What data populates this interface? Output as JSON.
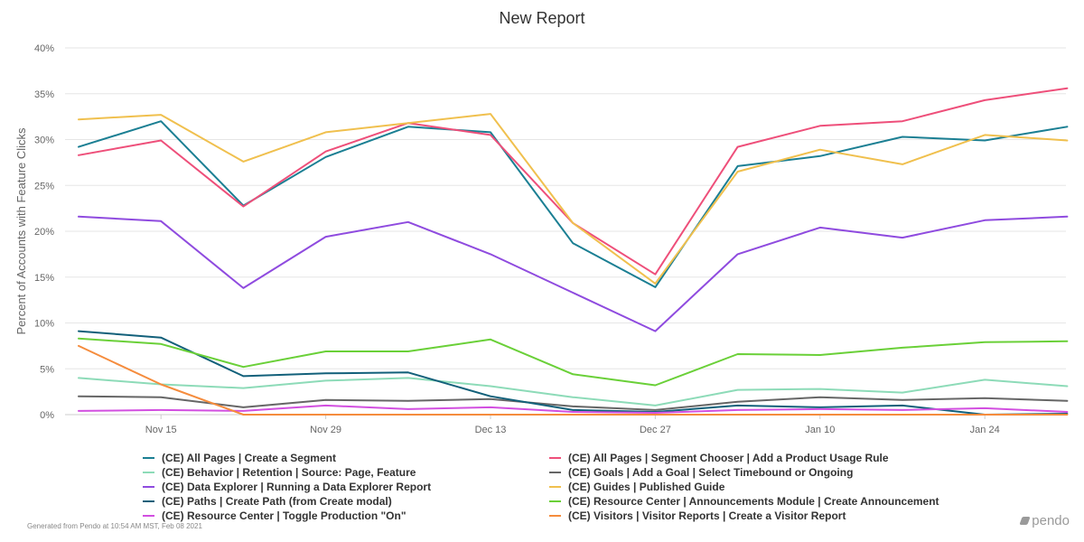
{
  "title": "New Report",
  "footer": "Generated from Pendo at 10:54 AM MST, Feb 08 2021",
  "brand": "pendo",
  "chart_data": {
    "type": "line",
    "title": "New Report",
    "xlabel": "",
    "ylabel": "Percent of Accounts with Feature Clicks",
    "ylim": [
      0,
      40
    ],
    "yticks": [
      0,
      5,
      10,
      15,
      20,
      25,
      30,
      35,
      40
    ],
    "ytick_labels": [
      "0%",
      "5%",
      "10%",
      "15%",
      "20%",
      "25%",
      "30%",
      "35%",
      "40%"
    ],
    "x": [
      "Nov 8",
      "Nov 15",
      "Nov 22",
      "Nov 29",
      "Dec 6",
      "Dec 13",
      "Dec 20",
      "Dec 27",
      "Jan 3",
      "Jan 10",
      "Jan 17",
      "Jan 24",
      "Jan 31"
    ],
    "xtick_labels": [
      "Nov 15",
      "Nov 29",
      "Dec 13",
      "Dec 27",
      "Jan 10",
      "Jan 24"
    ],
    "grid": true,
    "legend_position": "bottom",
    "series": [
      {
        "name": "(CE) All Pages | Create a Segment",
        "color": "#1b7f93",
        "values": [
          29.2,
          32.0,
          22.8,
          28.1,
          31.4,
          30.8,
          18.7,
          13.9,
          27.1,
          28.2,
          30.3,
          29.9,
          31.4
        ]
      },
      {
        "name": "(CE) All Pages | Segment Chooser | Add a Product Usage Rule",
        "color": "#ee4f7a",
        "values": [
          28.3,
          29.9,
          22.7,
          28.7,
          31.8,
          30.5,
          20.9,
          15.3,
          29.2,
          31.5,
          32.0,
          34.3,
          35.6
        ]
      },
      {
        "name": "(CE) Behavior | Retention | Source: Page, Feature",
        "color": "#8ddbb8",
        "values": [
          4.0,
          3.3,
          2.9,
          3.7,
          4.0,
          3.1,
          1.9,
          1.0,
          2.7,
          2.8,
          2.4,
          3.8,
          3.1
        ]
      },
      {
        "name": "(CE) Goals | Add a Goal | Select Timebound or Ongoing",
        "color": "#666666",
        "values": [
          2.0,
          1.9,
          0.8,
          1.6,
          1.5,
          1.7,
          0.9,
          0.5,
          1.4,
          1.9,
          1.6,
          1.8,
          1.5
        ]
      },
      {
        "name": "(CE) Data Explorer | Running a Data Explorer Report",
        "color": "#8f4bdf",
        "values": [
          21.6,
          21.1,
          13.8,
          19.4,
          21.0,
          17.5,
          13.3,
          9.1,
          17.5,
          20.4,
          19.3,
          21.2,
          21.6
        ]
      },
      {
        "name": "(CE) Guides | Published Guide",
        "color": "#f0c04e",
        "values": [
          32.2,
          32.7,
          27.6,
          30.8,
          31.8,
          32.8,
          20.9,
          14.3,
          26.5,
          28.9,
          27.3,
          30.5,
          29.9
        ]
      },
      {
        "name": "(CE) Paths | Create Path (from Create modal)",
        "color": "#12607a",
        "values": [
          9.1,
          8.4,
          4.2,
          4.5,
          4.6,
          2.0,
          0.5,
          0.3,
          1.0,
          0.8,
          1.0,
          0.0,
          0.1
        ]
      },
      {
        "name": "(CE) Resource Center | Announcements Module | Create Announcement",
        "color": "#6ad038",
        "values": [
          8.3,
          7.7,
          5.2,
          6.9,
          6.9,
          8.2,
          4.4,
          3.2,
          6.6,
          6.5,
          7.3,
          7.9,
          8.0
        ]
      },
      {
        "name": "(CE) Resource Center | Toggle Production \"On\"",
        "color": "#d24fe0",
        "values": [
          0.4,
          0.5,
          0.4,
          1.0,
          0.6,
          0.8,
          0.3,
          0.2,
          0.5,
          0.6,
          0.5,
          0.7,
          0.3
        ]
      },
      {
        "name": "(CE) Visitors | Visitor Reports | Create a Visitor Report",
        "color": "#f58c3d",
        "values": [
          7.5,
          3.3,
          0.0,
          0.0,
          0.0,
          0.0,
          0.0,
          0.0,
          0.0,
          0.0,
          0.0,
          0.0,
          0.0
        ]
      }
    ]
  }
}
